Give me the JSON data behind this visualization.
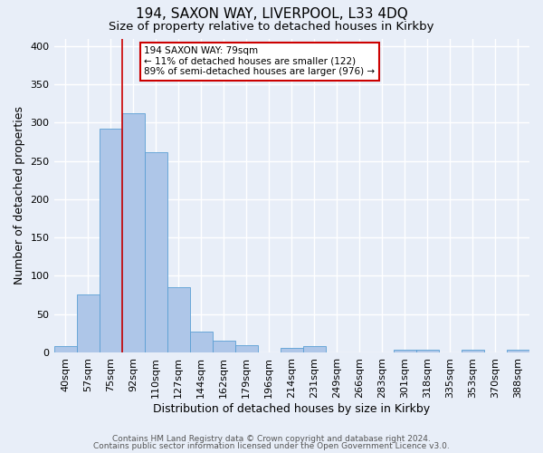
{
  "title": "194, SAXON WAY, LIVERPOOL, L33 4DQ",
  "subtitle": "Size of property relative to detached houses in Kirkby",
  "xlabel": "Distribution of detached houses by size in Kirkby",
  "ylabel": "Number of detached properties",
  "bar_labels": [
    "40sqm",
    "57sqm",
    "75sqm",
    "92sqm",
    "110sqm",
    "127sqm",
    "144sqm",
    "162sqm",
    "179sqm",
    "196sqm",
    "214sqm",
    "231sqm",
    "249sqm",
    "266sqm",
    "283sqm",
    "301sqm",
    "318sqm",
    "335sqm",
    "353sqm",
    "370sqm",
    "388sqm"
  ],
  "bar_values": [
    8,
    76,
    292,
    312,
    262,
    85,
    27,
    15,
    9,
    0,
    6,
    8,
    0,
    0,
    0,
    4,
    4,
    0,
    3,
    0,
    3
  ],
  "bar_color": "#aec6e8",
  "bar_edge_color": "#5a9fd4",
  "vline_x_index": 2,
  "vline_color": "#cc0000",
  "ylim": [
    0,
    410
  ],
  "yticks": [
    0,
    50,
    100,
    150,
    200,
    250,
    300,
    350,
    400
  ],
  "annotation_title": "194 SAXON WAY: 79sqm",
  "annotation_line1": "← 11% of detached houses are smaller (122)",
  "annotation_line2": "89% of semi-detached houses are larger (976) →",
  "annotation_box_color": "#ffffff",
  "annotation_box_edge": "#cc0000",
  "footer1": "Contains HM Land Registry data © Crown copyright and database right 2024.",
  "footer2": "Contains public sector information licensed under the Open Government Licence v3.0.",
  "bg_color": "#e8eef8",
  "grid_color": "#ffffff",
  "title_fontsize": 11,
  "subtitle_fontsize": 9.5,
  "axis_label_fontsize": 9,
  "tick_fontsize": 8,
  "footer_fontsize": 6.5
}
